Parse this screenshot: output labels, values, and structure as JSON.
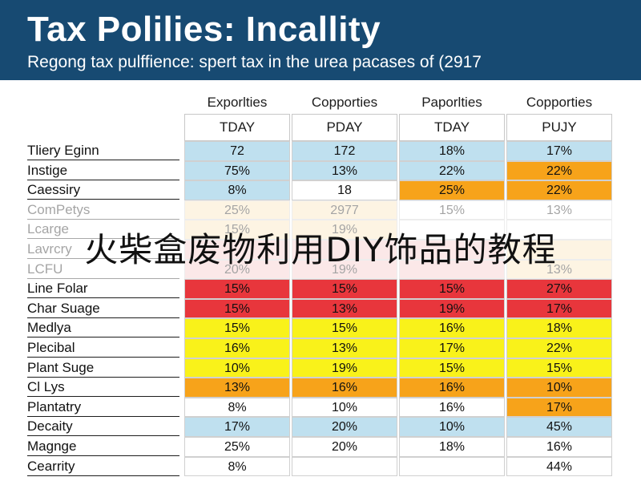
{
  "header": {
    "title": "Tax Polilies: Incallity",
    "subtitle": "Regong tax pulffience: spert tax in the urea pacases of (2917"
  },
  "table": {
    "column_headers": [
      "Exporlties",
      "Copporties",
      "Paporlties",
      "Copporties"
    ],
    "subheaders": [
      "TDAY",
      "PDAY",
      "TDAY",
      "PUJY"
    ],
    "colors": {
      "blue": "#bfe0ef",
      "orange": "#f7a31a",
      "red": "#e8363c",
      "yellow": "#f9f21a",
      "white": "#ffffff",
      "pink": "#f7c4c4",
      "peach": "#fbe3b8"
    },
    "rows": [
      {
        "label": "Tliery Eginn",
        "values": [
          "72",
          "172",
          "18%",
          "17%"
        ],
        "colors": [
          "blue",
          "blue",
          "blue",
          "blue"
        ]
      },
      {
        "label": "Instige",
        "values": [
          "75%",
          "13%",
          "22%",
          "22%"
        ],
        "colors": [
          "blue",
          "blue",
          "blue",
          "orange"
        ]
      },
      {
        "label": "Caessiry",
        "values": [
          "8%",
          "18",
          "25%",
          "22%"
        ],
        "colors": [
          "blue",
          "white",
          "orange",
          "orange"
        ]
      },
      {
        "label": "ComPetys",
        "values": [
          "25%",
          "2977",
          "15%",
          "13%"
        ],
        "colors": [
          "peach",
          "peach",
          "white",
          "white"
        ],
        "faded": true
      },
      {
        "label": "Lcarge",
        "values": [
          "15%",
          "19%",
          "",
          ""
        ],
        "colors": [
          "peach",
          "peach",
          "white",
          "white"
        ],
        "faded": true
      },
      {
        "label": "Lavrcry",
        "values": [
          "",
          "",
          "",
          ""
        ],
        "colors": [
          "pink",
          "pink",
          "pink",
          "peach"
        ],
        "faded": true
      },
      {
        "label": "LCFU",
        "values": [
          "20%",
          "19%",
          "",
          "13%"
        ],
        "colors": [
          "pink",
          "pink",
          "pink",
          "peach"
        ],
        "faded": true
      },
      {
        "label": "Line Folar",
        "values": [
          "15%",
          "15%",
          "15%",
          "27%"
        ],
        "colors": [
          "red",
          "red",
          "red",
          "red"
        ]
      },
      {
        "label": "Char Suage",
        "values": [
          "15%",
          "13%",
          "19%",
          "17%"
        ],
        "colors": [
          "red",
          "red",
          "red",
          "red"
        ]
      },
      {
        "label": "Medlya",
        "values": [
          "15%",
          "15%",
          "16%",
          "18%"
        ],
        "colors": [
          "yellow",
          "yellow",
          "yellow",
          "yellow"
        ]
      },
      {
        "label": "Plecibal",
        "values": [
          "16%",
          "13%",
          "17%",
          "22%"
        ],
        "colors": [
          "yellow",
          "yellow",
          "yellow",
          "yellow"
        ]
      },
      {
        "label": "Plant Suge",
        "values": [
          "10%",
          "19%",
          "15%",
          "15%"
        ],
        "colors": [
          "yellow",
          "yellow",
          "yellow",
          "yellow"
        ]
      },
      {
        "label": "Cl Lys",
        "values": [
          "13%",
          "16%",
          "16%",
          "10%"
        ],
        "colors": [
          "orange",
          "orange",
          "orange",
          "orange"
        ]
      },
      {
        "label": "Plantatry",
        "values": [
          "8%",
          "10%",
          "16%",
          "17%"
        ],
        "colors": [
          "white",
          "white",
          "white",
          "orange"
        ]
      },
      {
        "label": "Decaity",
        "values": [
          "17%",
          "20%",
          "10%",
          "45%"
        ],
        "colors": [
          "blue",
          "blue",
          "blue",
          "blue"
        ]
      },
      {
        "label": "Magnge",
        "values": [
          "25%",
          "20%",
          "18%",
          "16%"
        ],
        "colors": [
          "white",
          "white",
          "white",
          "white"
        ]
      },
      {
        "label": "Cearrity",
        "values": [
          "8%",
          "",
          "",
          "44%"
        ],
        "colors": [
          "white",
          "white",
          "white",
          "white"
        ]
      }
    ]
  },
  "overlay": {
    "text": "火柴盒废物利用DIY饰品的教程"
  }
}
